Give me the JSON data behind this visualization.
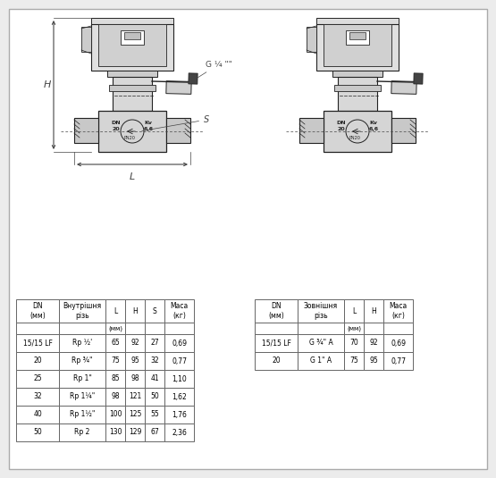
{
  "bg_color": "#ececec",
  "inner_bg": "#ffffff",
  "table1_headers": [
    "DN\n(мм)",
    "Внутрішня\nрізь",
    "L",
    "H",
    "S",
    "Маса\n(кг)"
  ],
  "table1_sub": [
    "",
    "",
    "(мм)",
    "",
    "",
    ""
  ],
  "table1_data": [
    [
      "15/15 LF",
      "Rp ½'",
      "65",
      "92",
      "27",
      "0,69"
    ],
    [
      "20",
      "Rp ¾\"",
      "75",
      "95",
      "32",
      "0,77"
    ],
    [
      "25",
      "Rp 1\"",
      "85",
      "98",
      "41",
      "1,10"
    ],
    [
      "32",
      "Rp 1¼\"",
      "98",
      "121",
      "50",
      "1,62"
    ],
    [
      "40",
      "Rp 1½\"",
      "100",
      "125",
      "55",
      "1,76"
    ],
    [
      "50",
      "Rp 2",
      "130",
      "129",
      "67",
      "2,36"
    ]
  ],
  "table2_headers": [
    "DN\n(мм)",
    "Зовнішня\nрізь",
    "L",
    "H",
    "Маса\n(кг)"
  ],
  "table2_sub": [
    "",
    "",
    "(мм)",
    "",
    ""
  ],
  "table2_data": [
    [
      "15/15 LF",
      "G ¾\" A",
      "70",
      "92",
      "0,69"
    ],
    [
      "20",
      "G 1\" A",
      "75",
      "95",
      "0,77"
    ]
  ],
  "label_H": "H",
  "label_L": "L",
  "label_S": "S",
  "label_G": "G ¼ \"",
  "lc": "#222222",
  "dc": "#444444"
}
